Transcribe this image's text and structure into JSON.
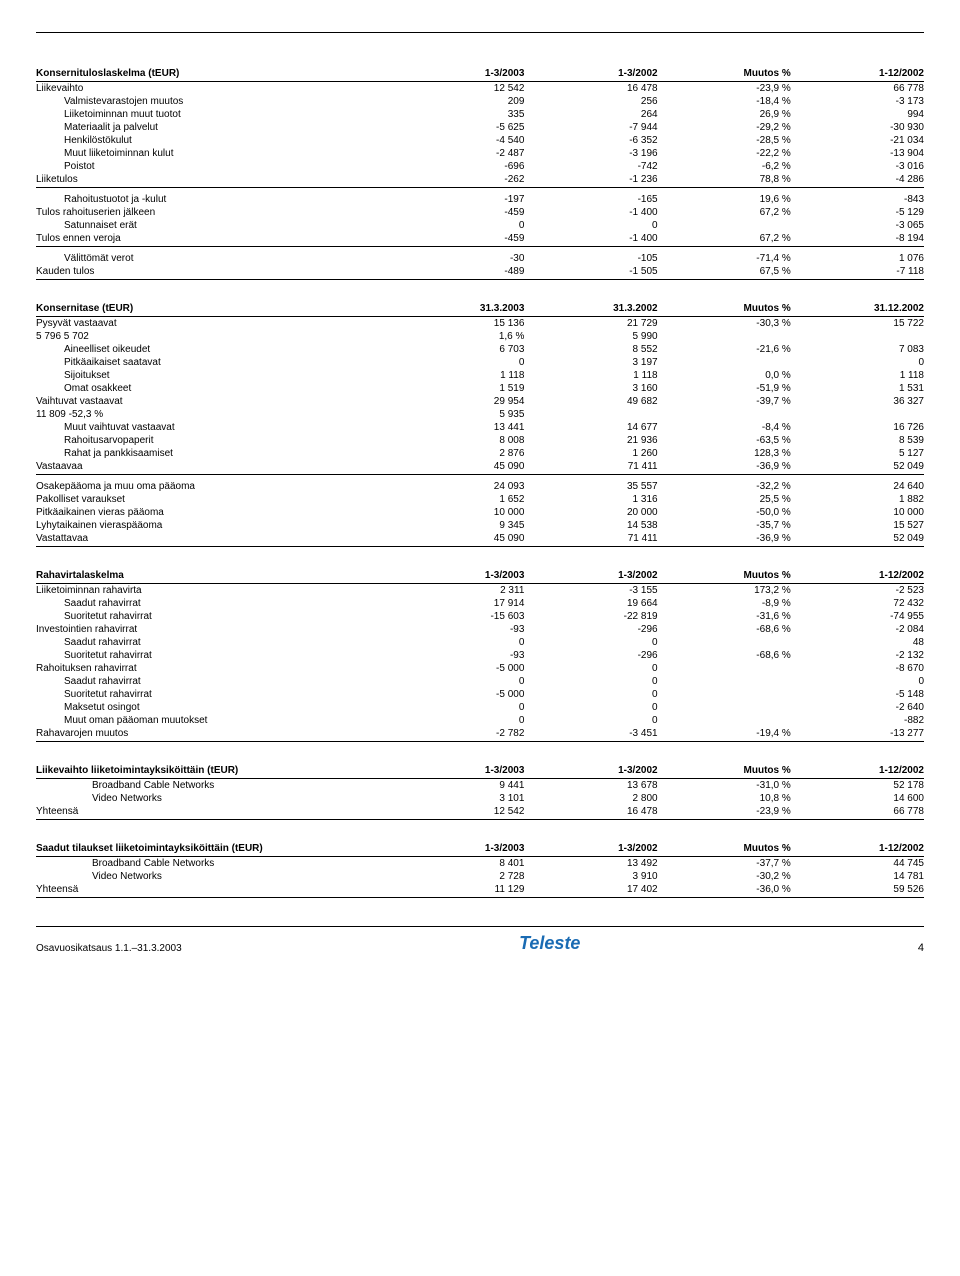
{
  "table1": {
    "title": "Konsernituloslaskelma (tEUR)",
    "cols": [
      "1-3/2003",
      "1-3/2002",
      "Muutos %",
      "1-12/2002"
    ],
    "body": [
      {
        "label": "Liikevaihto",
        "ind": 0,
        "vals": [
          "12 542",
          "16 478",
          "-23,9 %",
          "66 778"
        ]
      },
      {
        "label": "Valmistevarastojen muutos",
        "ind": 1,
        "vals": [
          "209",
          "256",
          "-18,4 %",
          "-3 173"
        ]
      },
      {
        "label": "Liiketoiminnan muut tuotot",
        "ind": 1,
        "vals": [
          "335",
          "264",
          "26,9 %",
          "994"
        ]
      },
      {
        "label": "Materiaalit ja palvelut",
        "ind": 1,
        "vals": [
          "-5 625",
          "-7 944",
          "-29,2 %",
          "-30 930"
        ]
      },
      {
        "label": "Henkilöstökulut",
        "ind": 1,
        "vals": [
          "-4 540",
          "-6 352",
          "-28,5 %",
          "-21 034"
        ]
      },
      {
        "label": "Muut liiketoiminnan kulut",
        "ind": 1,
        "vals": [
          "-2 487",
          "-3 196",
          "-22,2 %",
          "-13 904"
        ]
      },
      {
        "label": "Poistot",
        "ind": 1,
        "vals": [
          "-696",
          "-742",
          "-6,2 %",
          "-3 016"
        ]
      },
      {
        "label": "Liiketulos",
        "ind": 0,
        "vals": [
          "-262",
          "-1 236",
          "78,8 %",
          "-4 286"
        ],
        "sep": true
      },
      {
        "label": "Rahoitustuotot ja -kulut",
        "ind": 1,
        "vals": [
          "-197",
          "-165",
          "19,6 %",
          "-843"
        ],
        "start": true
      },
      {
        "label": "Tulos rahoituserien jälkeen",
        "ind": 0,
        "vals": [
          "-459",
          "-1 400",
          "67,2 %",
          "-5 129"
        ]
      },
      {
        "label": "Satunnaiset erät",
        "ind": 1,
        "vals": [
          "0",
          "0",
          "",
          "-3 065"
        ]
      },
      {
        "label": "Tulos ennen veroja",
        "ind": 0,
        "vals": [
          "-459",
          "-1 400",
          "67,2 %",
          "-8 194"
        ],
        "sep": true
      },
      {
        "label": "Välittömät verot",
        "ind": 1,
        "vals": [
          "-30",
          "-105",
          "-71,4 %",
          "1 076"
        ],
        "start": true
      },
      {
        "label": "Kauden tulos",
        "ind": 0,
        "vals": [
          "-489",
          "-1 505",
          "67,5 %",
          "-7 118"
        ],
        "sep": true
      }
    ]
  },
  "table2": {
    "title": "Konsernitase (tEUR)",
    "cols": [
      "31.3.2003",
      "31.3.2002",
      "Muutos %",
      "31.12.2002"
    ],
    "body": [
      {
        "label": "Pysyvät vastaavat",
        "ind": 0,
        "vals": [
          "15 136",
          "21 729",
          "-30,3 %",
          "15 722"
        ]
      },
      {
        "label": "5 796     5 702",
        "ind": 0,
        "vals": [
          "1,6 %",
          "5 990",
          "",
          ""
        ]
      },
      {
        "label": "Aineelliset oikeudet",
        "ind": 1,
        "vals": [
          "6 703",
          "8 552",
          "-21,6 %",
          "7 083"
        ]
      },
      {
        "label": "Pitkäaikaiset saatavat",
        "ind": 1,
        "vals": [
          "0",
          "3 197",
          "",
          "0"
        ]
      },
      {
        "label": "Sijoitukset",
        "ind": 1,
        "vals": [
          "1 118",
          "1 118",
          "0,0 %",
          "1 118"
        ]
      },
      {
        "label": "Omat osakkeet",
        "ind": 1,
        "vals": [
          "1 519",
          "3 160",
          "-51,9 %",
          "1 531"
        ]
      },
      {
        "label": "Vaihtuvat vastaavat",
        "ind": 0,
        "vals": [
          "29 954",
          "49 682",
          "-39,7 %",
          "36 327"
        ]
      },
      {
        "label": "11 809 -52,3 %",
        "ind": 0,
        "vals": [
          "5 935",
          "",
          "",
          ""
        ]
      },
      {
        "label": "Muut vaihtuvat vastaavat",
        "ind": 1,
        "vals": [
          "13 441",
          "14 677",
          "-8,4 %",
          "16 726"
        ]
      },
      {
        "label": "Rahoitusarvopaperit",
        "ind": 1,
        "vals": [
          "8 008",
          "21 936",
          "-63,5 %",
          "8 539"
        ]
      },
      {
        "label": "Rahat ja pankkisaamiset",
        "ind": 1,
        "vals": [
          "2 876",
          "1 260",
          "128,3 %",
          "5 127"
        ]
      },
      {
        "label": "Vastaavaa",
        "ind": 0,
        "vals": [
          "45 090",
          "71 411",
          "-36,9 %",
          "52 049"
        ],
        "sep": true
      },
      {
        "label": "Osakepääoma ja muu oma pääoma",
        "ind": 0,
        "vals": [
          "24 093",
          "35 557",
          "-32,2 %",
          "24 640"
        ],
        "start": true
      },
      {
        "label": "Pakolliset varaukset",
        "ind": 0,
        "vals": [
          "1 652",
          "1 316",
          "25,5 %",
          "1 882"
        ]
      },
      {
        "label": "Pitkäaikainen vieras pääoma",
        "ind": 0,
        "vals": [
          "10 000",
          "20 000",
          "-50,0 %",
          "10 000"
        ]
      },
      {
        "label": "Lyhytaikainen vieraspääoma",
        "ind": 0,
        "vals": [
          "9 345",
          "14 538",
          "-35,7 %",
          "15 527"
        ]
      },
      {
        "label": "Vastattavaa",
        "ind": 0,
        "vals": [
          "45 090",
          "71 411",
          "-36,9 %",
          "52 049"
        ],
        "sep": true
      }
    ]
  },
  "table3": {
    "title": "Rahavirtalaskelma",
    "cols": [
      "1-3/2003",
      "1-3/2002",
      "Muutos %",
      "1-12/2002"
    ],
    "body": [
      {
        "label": "Liiketoiminnan rahavirta",
        "ind": 0,
        "vals": [
          "2 311",
          "-3 155",
          "173,2 %",
          "-2 523"
        ]
      },
      {
        "label": "Saadut rahavirrat",
        "ind": 1,
        "vals": [
          "17 914",
          "19 664",
          "-8,9 %",
          "72 432"
        ]
      },
      {
        "label": "Suoritetut rahavirrat",
        "ind": 1,
        "vals": [
          "-15 603",
          "-22 819",
          "-31,6 %",
          "-74 955"
        ]
      },
      {
        "label": "Investointien rahavirrat",
        "ind": 0,
        "vals": [
          "-93",
          "-296",
          "-68,6 %",
          "-2 084"
        ]
      },
      {
        "label": "Saadut rahavirrat",
        "ind": 1,
        "vals": [
          "0",
          "0",
          "",
          "48"
        ]
      },
      {
        "label": "Suoritetut rahavirrat",
        "ind": 1,
        "vals": [
          "-93",
          "-296",
          "-68,6 %",
          "-2 132"
        ]
      },
      {
        "label": "Rahoituksen rahavirrat",
        "ind": 0,
        "vals": [
          "-5 000",
          "0",
          "",
          "-8 670"
        ]
      },
      {
        "label": "Saadut rahavirrat",
        "ind": 1,
        "vals": [
          "0",
          "0",
          "",
          "0"
        ]
      },
      {
        "label": "Suoritetut rahavirrat",
        "ind": 1,
        "vals": [
          "-5 000",
          "0",
          "",
          "-5 148"
        ]
      },
      {
        "label": "Maksetut osingot",
        "ind": 1,
        "vals": [
          "0",
          "0",
          "",
          "-2 640"
        ]
      },
      {
        "label": "Muut oman pääoman muutokset",
        "ind": 1,
        "vals": [
          "0",
          "0",
          "",
          "-882"
        ]
      },
      {
        "label": "Rahavarojen muutos",
        "ind": 0,
        "vals": [
          "-2 782",
          "-3 451",
          "-19,4 %",
          "-13 277"
        ],
        "sep": true
      }
    ]
  },
  "table4": {
    "title": "Liikevaihto liiketoimintayksiköittäin (tEUR)",
    "cols": [
      "1-3/2003",
      "1-3/2002",
      "Muutos %",
      "1-12/2002"
    ],
    "body": [
      {
        "label": "Broadband Cable Networks",
        "ind": 2,
        "vals": [
          "9 441",
          "13 678",
          "-31,0 %",
          "52 178"
        ]
      },
      {
        "label": "Video Networks",
        "ind": 2,
        "vals": [
          "3 101",
          "2 800",
          "10,8 %",
          "14 600"
        ]
      },
      {
        "label": "Yhteensä",
        "ind": 0,
        "vals": [
          "12 542",
          "16 478",
          "-23,9 %",
          "66 778"
        ],
        "sep": true
      }
    ]
  },
  "table5": {
    "title": "Saadut tilaukset liiketoimintayksiköittäin (tEUR)",
    "cols": [
      "1-3/2003",
      "1-3/2002",
      "Muutos %",
      "1-12/2002"
    ],
    "body": [
      {
        "label": "Broadband Cable Networks",
        "ind": 2,
        "vals": [
          "8 401",
          "13 492",
          "-37,7 %",
          "44 745"
        ]
      },
      {
        "label": "Video Networks",
        "ind": 2,
        "vals": [
          "2 728",
          "3 910",
          "-30,2 %",
          "14 781"
        ]
      },
      {
        "label": "Yhteensä",
        "ind": 0,
        "vals": [
          "11 129",
          "17 402",
          "-36,0 %",
          "59 526"
        ],
        "sep": true
      }
    ]
  },
  "footer": {
    "left": "Osavuosikatsaus 1.1.–31.3.2003",
    "brand": "Teleste",
    "page": "4"
  }
}
